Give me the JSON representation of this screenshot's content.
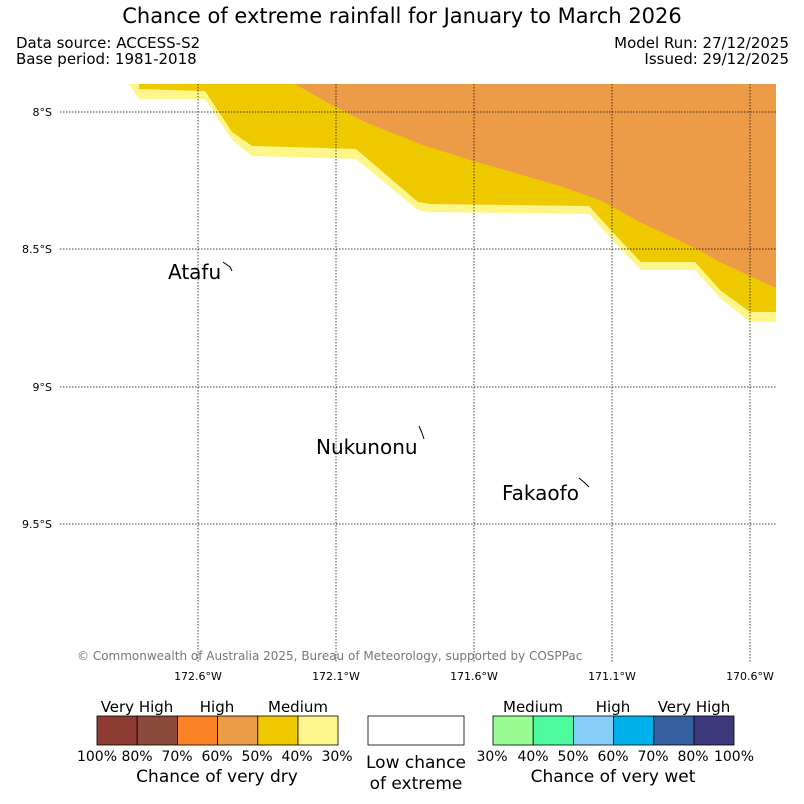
{
  "header": {
    "title": "Chance of extreme rainfall for January to March 2026",
    "data_source": "Data source: ACCESS-S2",
    "base_period": "Base period: 1981-2018",
    "model_run": "Model Run: 27/12/2025",
    "issued": "Issued: 29/12/2025"
  },
  "map": {
    "lat_labels": [
      "8°S",
      "8.5°S",
      "9°S",
      "9.5°S"
    ],
    "lon_labels": [
      "172.6°W",
      "172.1°W",
      "171.6°W",
      "171.1°W",
      "170.6°W"
    ],
    "islands": [
      "Atafu",
      "Nukunonu",
      "Fakaofo"
    ],
    "copyright": "© Commonwealth of Australia 2025, Bureau of Meteorology, supported by COSPPac",
    "zone_colors": {
      "light_yellow": "#fef68a",
      "yellow": "#eec900",
      "orange": "#ec9b47"
    }
  },
  "legend": {
    "dry": {
      "categories": [
        "Very High",
        "High",
        "Medium"
      ],
      "ticks": [
        "100%",
        "80%",
        "70%",
        "60%",
        "50%",
        "40%",
        "30%"
      ],
      "colors": [
        "#8e3b32",
        "#8b4a3c",
        "#fb8325",
        "#ec9b47",
        "#eec900",
        "#fef68a"
      ],
      "caption": "Chance of very dry"
    },
    "low": {
      "caption_line1": "Low chance",
      "caption_line2": "of extreme"
    },
    "wet": {
      "categories": [
        "Medium",
        "High",
        "Very High"
      ],
      "ticks": [
        "30%",
        "40%",
        "50%",
        "60%",
        "70%",
        "80%",
        "100%"
      ],
      "colors": [
        "#9afc95",
        "#4ffb9f",
        "#86cefa",
        "#00b0eb",
        "#3460a0",
        "#3c3a7c"
      ],
      "caption": "Chance of very wet"
    }
  }
}
